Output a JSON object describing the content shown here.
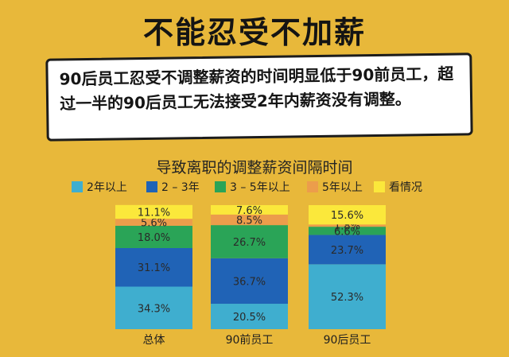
{
  "headline": "不能忍受不加薪",
  "lead": "90后员工忍受不调整薪资的时间明显低于90前员工，超过一半的90后员工无法接受2年内薪资没有调整。",
  "chart_data": {
    "type": "bar",
    "stacked": true,
    "percent_stacked": true,
    "title": "导致离职的调整薪资间隔时间",
    "xlabel": "",
    "ylabel": "",
    "ylim": [
      0,
      100
    ],
    "legend_position": "top",
    "categories": [
      "总体",
      "90前员工",
      "90后员工"
    ],
    "series": [
      {
        "name": "2年以上",
        "color": "#3faecf",
        "values": [
          34.3,
          20.5,
          52.3
        ],
        "labels": [
          "34.3%",
          "20.5%",
          "52.3%"
        ]
      },
      {
        "name": "2 – 3年",
        "color": "#2063b6",
        "values": [
          31.1,
          36.7,
          23.7
        ],
        "labels": [
          "31.1%",
          "36.7%",
          "23.7%"
        ]
      },
      {
        "name": "3 – 5年以上",
        "color": "#2aa457",
        "values": [
          18.0,
          26.7,
          6.6
        ],
        "labels": [
          "18.0%",
          "26.7%",
          "6.6%"
        ]
      },
      {
        "name": "5年以上",
        "color": "#ec9d4b",
        "values": [
          5.6,
          8.5,
          1.8
        ],
        "labels": [
          "5.6%",
          "8.5%",
          "1.8%"
        ]
      },
      {
        "name": "看情况",
        "color": "#fbe83b",
        "values": [
          11.1,
          7.6,
          15.6
        ],
        "labels": [
          "11.1%",
          "7.6%",
          "15.6%"
        ]
      }
    ]
  }
}
